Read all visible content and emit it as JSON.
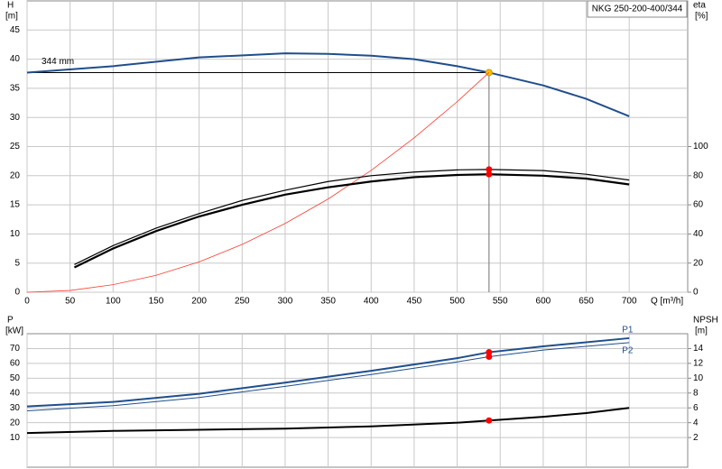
{
  "chart_data": [
    {
      "type": "line",
      "title": "NKG 250-200-400/344",
      "ylabel": "H",
      "yunit": "[m]",
      "y2label": "eta",
      "y2unit": "[%]",
      "xlabel": "Q [m³/h]",
      "annotation": "344 mm",
      "xlim": [
        0,
        768
      ],
      "xticks": [
        0,
        50,
        100,
        150,
        200,
        250,
        300,
        350,
        400,
        450,
        500,
        550,
        600,
        650,
        700
      ],
      "ylim": [
        0,
        50
      ],
      "yticks": [
        0,
        5,
        10,
        15,
        20,
        25,
        30,
        35,
        40,
        45
      ],
      "y2lim": [
        0,
        200
      ],
      "y2ticks": [
        0,
        20,
        40,
        60,
        80,
        100
      ],
      "grid": true,
      "duty_x": 537,
      "series": [
        {
          "color": "#1f4e8c",
          "width": 2,
          "marker": "#f5c400",
          "x": [
            0,
            100,
            200,
            300,
            350,
            400,
            450,
            500,
            537,
            600,
            650,
            700
          ],
          "values": [
            37.7,
            38.8,
            40.3,
            41,
            40.9,
            40.6,
            40,
            38.8,
            37.7,
            35.5,
            33.2,
            30.2
          ]
        },
        {
          "color": "#ff3b30",
          "width": 0.8,
          "x": [
            0,
            50,
            100,
            150,
            200,
            250,
            300,
            350,
            400,
            450,
            500,
            537
          ],
          "values": [
            0,
            0.3,
            1.3,
            2.9,
            5.2,
            8.2,
            11.8,
            16,
            20.9,
            26.5,
            32.7,
            37.7
          ]
        },
        {
          "color": "#000000",
          "width": 1.2,
          "axis": "y2",
          "marker": "#ff0000",
          "x": [
            55,
            100,
            150,
            200,
            250,
            300,
            350,
            400,
            450,
            500,
            537,
            600,
            650,
            700
          ],
          "values": [
            19,
            32,
            44,
            54,
            63,
            70,
            76,
            80,
            82.5,
            84,
            84.3,
            83.5,
            81,
            77
          ]
        },
        {
          "color": "#000000",
          "width": 2.2,
          "axis": "y2",
          "marker": "#ff0000",
          "x": [
            55,
            100,
            150,
            200,
            250,
            300,
            350,
            400,
            450,
            500,
            537,
            600,
            650,
            700
          ],
          "values": [
            17,
            30,
            42,
            52,
            60,
            67,
            72,
            76,
            79,
            80.5,
            81,
            80,
            78,
            74
          ]
        }
      ]
    },
    {
      "type": "line",
      "ylabel": "P",
      "yunit": "[kW]",
      "y2label": "NPSH",
      "y2unit": "[m]",
      "xlim": [
        0,
        768
      ],
      "xticks": [
        0,
        50,
        100,
        150,
        200,
        250,
        300,
        350,
        400,
        450,
        500,
        550,
        600,
        650,
        700
      ],
      "ylim": [
        -10,
        80
      ],
      "yticks": [
        10,
        20,
        30,
        40,
        50,
        60,
        70
      ],
      "y2lim": [
        -2,
        16
      ],
      "y2ticks": [
        2,
        4,
        6,
        8,
        10,
        12,
        14
      ],
      "grid": true,
      "duty_x": 537,
      "series": [
        {
          "name": "P1",
          "color": "#1f4e8c",
          "width": 2,
          "marker": "#ff0000",
          "x": [
            0,
            100,
            200,
            300,
            400,
            500,
            537,
            600,
            700
          ],
          "values": [
            31,
            34,
            39.5,
            47,
            55,
            63.5,
            67.5,
            71.5,
            77
          ]
        },
        {
          "name": "P2",
          "color": "#1f4e8c",
          "width": 1,
          "marker": "#ff0000",
          "x": [
            0,
            100,
            200,
            300,
            400,
            500,
            537,
            600,
            700
          ],
          "values": [
            28,
            31.5,
            37,
            44.5,
            52.5,
            61,
            64.5,
            69,
            74
          ]
        },
        {
          "color": "#000000",
          "width": 2,
          "axis": "y2",
          "marker": "#ff0000",
          "x": [
            0,
            100,
            200,
            300,
            400,
            500,
            537,
            600,
            650,
            700
          ],
          "values": [
            2.6,
            2.9,
            3.05,
            3.2,
            3.5,
            4.0,
            4.3,
            4.8,
            5.3,
            6.0
          ]
        }
      ]
    }
  ]
}
